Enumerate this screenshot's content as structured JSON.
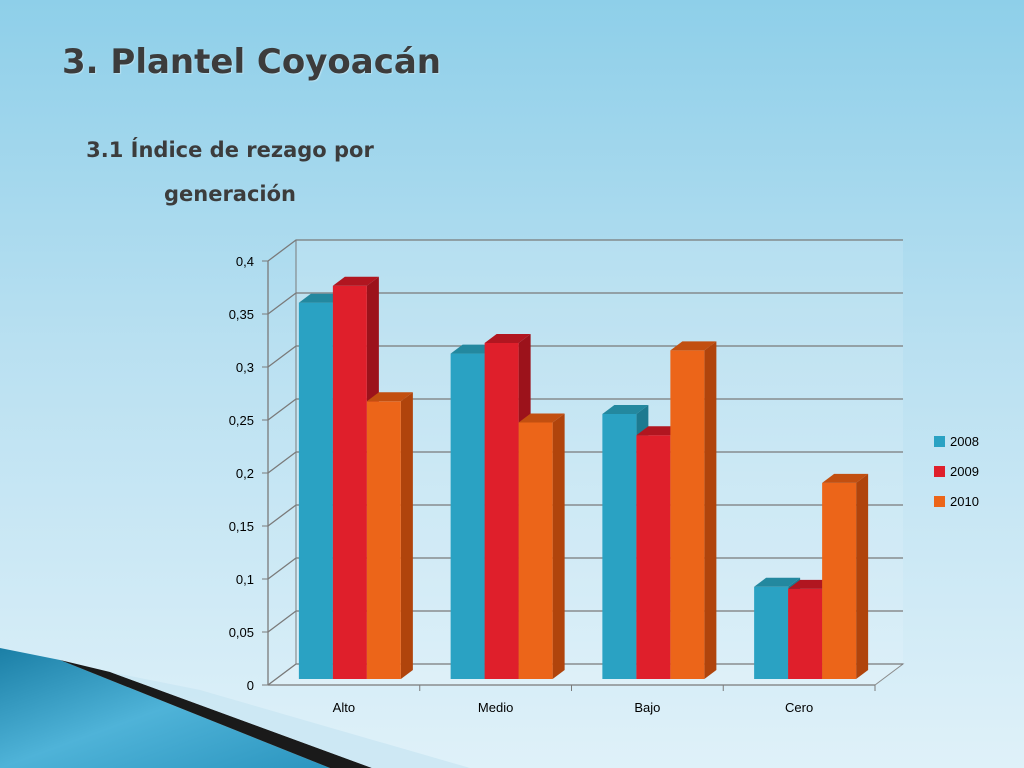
{
  "slide": {
    "title": "3. Plantel Coyoacán",
    "subtitle": "3.1 Índice de rezago por generación"
  },
  "chart_data": {
    "type": "bar",
    "categories": [
      "Alto",
      "Medio",
      "Bajo",
      "Cero"
    ],
    "series": [
      {
        "name": "2008",
        "values": [
          0.355,
          0.307,
          0.25,
          0.087
        ],
        "color": "#2aa2c3",
        "top": "#23889f",
        "side": "#1d7a90"
      },
      {
        "name": "2009",
        "values": [
          0.371,
          0.317,
          0.23,
          0.085
        ],
        "color": "#df1f2b",
        "top": "#b11620",
        "side": "#9c121b"
      },
      {
        "name": "2010",
        "values": [
          0.262,
          0.242,
          0.31,
          0.185
        ],
        "color": "#ec6519",
        "top": "#c24f10",
        "side": "#b0440c"
      }
    ],
    "ylim": [
      0,
      0.4
    ],
    "yticks": [
      "0",
      "0,05",
      "0,1",
      "0,15",
      "0,2",
      "0,25",
      "0,3",
      "0,35",
      "0,4"
    ],
    "grid": true,
    "legend_position": "right",
    "three_d": true
  }
}
